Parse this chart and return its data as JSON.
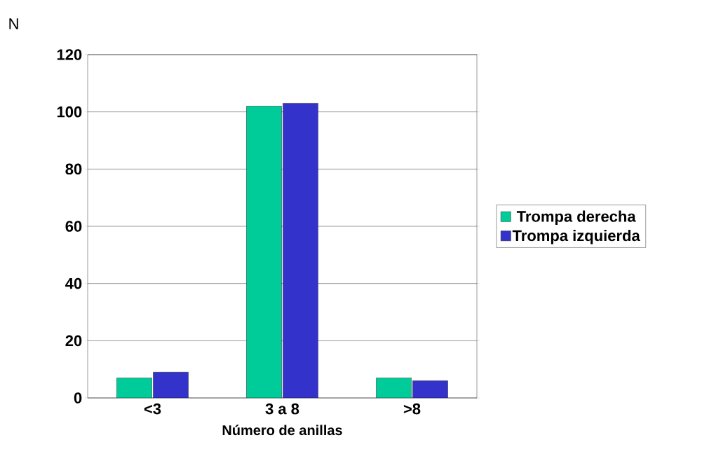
{
  "chart_data": {
    "type": "bar",
    "xlabel": "Número de anillas",
    "ylabel": "N",
    "categories": [
      "<3",
      "3 a 8",
      ">8"
    ],
    "series": [
      {
        "name": "Trompa derecha",
        "color": "#00cc99",
        "values": [
          7,
          102,
          7
        ]
      },
      {
        "name": "Trompa izquierda",
        "color": "#3333cc",
        "values": [
          9,
          103,
          6
        ]
      }
    ],
    "ylim": [
      0,
      120
    ],
    "yticks": [
      0,
      20,
      40,
      60,
      80,
      100,
      120
    ],
    "grid": "y",
    "legend": "right"
  }
}
